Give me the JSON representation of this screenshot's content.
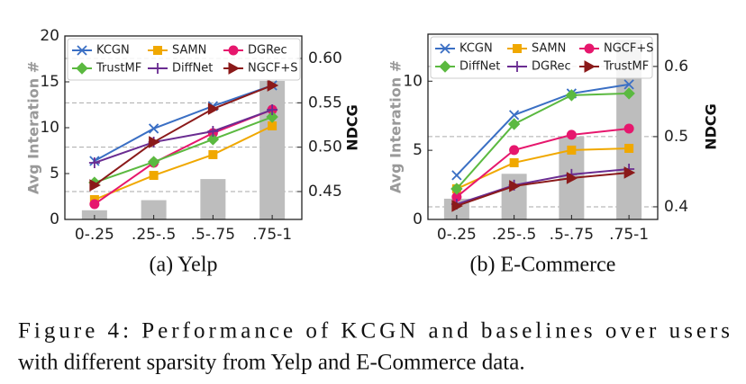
{
  "chart_data": [
    {
      "type": "line",
      "subtitle": "(a) Yelp",
      "ylabel": "Avg Interation #",
      "y2label": "NDCG",
      "categories": [
        "0-.25",
        ".25-.5",
        ".5-.75",
        ".75-1"
      ],
      "bar_values": [
        1.0,
        2.1,
        4.4,
        15.1
      ],
      "bar_color": "#bdbdbd",
      "ylim": [
        0,
        20
      ],
      "yticks": [
        0,
        5,
        10,
        15,
        20
      ],
      "y2lim": [
        0.4186,
        0.6253
      ],
      "y2ticks": [
        0.45,
        {
          "value": 0.5,
          "label": "0.50"
        },
        0.55,
        {
          "value": 0.6,
          "label": "0.60"
        }
      ],
      "grid": "y2",
      "legend": "upper left",
      "series": [
        {
          "name": "KCGN",
          "color": "#3a6fc4",
          "marker": "x",
          "axis": "y2",
          "values": [
            0.4845,
            0.521,
            0.5463,
            0.5696
          ]
        },
        {
          "name": "SAMN",
          "color": "#f0a800",
          "marker": "square",
          "axis": "y2",
          "values": [
            0.4409,
            0.4682,
            0.4916,
            0.524
          ]
        },
        {
          "name": "DGRec",
          "color": "#e6176d",
          "marker": "circle",
          "axis": "y2",
          "values": [
            0.4358,
            0.4824,
            0.5159,
            0.5422
          ]
        },
        {
          "name": "TrustMF",
          "color": "#5bb940",
          "marker": "diamond",
          "axis": "y2",
          "values": [
            0.4601,
            0.4834,
            0.5088,
            0.5341
          ]
        },
        {
          "name": "DiffNet",
          "color": "#6a2c91",
          "marker": "plus",
          "axis": "y2",
          "values": [
            0.4824,
            0.5057,
            0.5179,
            0.5422
          ]
        },
        {
          "name": "NGCF+S",
          "color": "#8b1a1a",
          "marker": "triangle",
          "axis": "y2",
          "values": [
            0.4571,
            0.5057,
            0.5432,
            0.5696
          ]
        }
      ]
    },
    {
      "type": "line",
      "subtitle": "(b) E-Commerce",
      "ylabel": "Avg Interation #",
      "y2label": "NDCG",
      "categories": [
        "0-.25",
        ".25-.5",
        ".5-.75",
        ".75-1"
      ],
      "bar_values": [
        1.5,
        3.3,
        6.0,
        13.0
      ],
      "bar_color": "#bdbdbd",
      "ylim": [
        0,
        13.4
      ],
      "yticks": [
        0,
        5,
        10
      ],
      "y2lim": [
        0.382,
        0.646
      ],
      "y2ticks": [
        0.4,
        0.5,
        0.6
      ],
      "grid": "y2",
      "legend": "upper left",
      "series": [
        {
          "name": "KCGN",
          "color": "#3a6fc4",
          "marker": "x",
          "axis": "y2",
          "values": [
            0.4449,
            0.5308,
            0.5615,
            0.5744
          ]
        },
        {
          "name": "SAMN",
          "color": "#f0a800",
          "marker": "square",
          "axis": "y2",
          "values": [
            0.4256,
            0.4628,
            0.4808,
            0.4833
          ]
        },
        {
          "name": "NGCF+S",
          "color": "#e6176d",
          "marker": "circle",
          "axis": "y2",
          "values": [
            0.4141,
            0.4808,
            0.5026,
            0.5115
          ]
        },
        {
          "name": "DiffNet",
          "color": "#5bb940",
          "marker": "diamond",
          "axis": "y2",
          "values": [
            0.4256,
            0.5179,
            0.559,
            0.5615
          ]
        },
        {
          "name": "DGRec",
          "color": "#6a2c91",
          "marker": "plus",
          "axis": "y2",
          "values": [
            0.4038,
            0.4308,
            0.4462,
            0.4538
          ]
        },
        {
          "name": "TrustMF",
          "color": "#8b1a1a",
          "marker": "triangle",
          "axis": "y2",
          "values": [
            0.4013,
            0.4295,
            0.441,
            0.4487
          ]
        }
      ]
    }
  ],
  "caption": [
    "Figure 4: Performance of KCGN and baselines over users",
    "with different sparsity from Yelp and E-Commerce data."
  ]
}
